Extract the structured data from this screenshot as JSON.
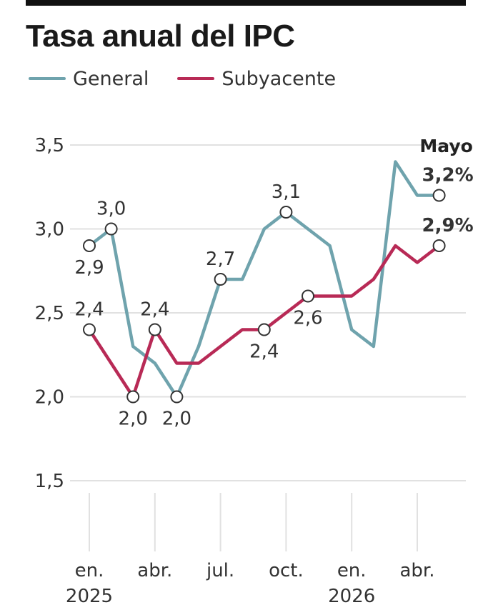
{
  "header": {
    "title": "Tasa anual del IPC"
  },
  "colors": {
    "general": "#6fa3ad",
    "subyacente": "#b82a56",
    "grid": "#e1e1e1",
    "text": "#333333"
  },
  "chart_data": {
    "type": "line",
    "title": "Tasa anual del IPC",
    "xlabel": "",
    "ylabel": "",
    "ylim": [
      1.5,
      3.5
    ],
    "yticks": [
      "3,5",
      "3,0",
      "2,5",
      "2,0",
      "1,5"
    ],
    "grid": true,
    "legend_position": "top-left",
    "x": [
      "2025-01",
      "2025-02",
      "2025-03",
      "2025-04",
      "2025-05",
      "2025-06",
      "2025-07",
      "2025-08",
      "2025-09",
      "2025-10",
      "2025-11",
      "2025-12",
      "2026-01",
      "2026-02",
      "2026-03",
      "2026-04",
      "2026-05"
    ],
    "xtick_labels": [
      {
        "x": "2025-01",
        "line1": "en.",
        "line2": "2025"
      },
      {
        "x": "2025-04",
        "line1": "abr.",
        "line2": ""
      },
      {
        "x": "2025-07",
        "line1": "jul.",
        "line2": ""
      },
      {
        "x": "2025-10",
        "line1": "oct.",
        "line2": ""
      },
      {
        "x": "2026-01",
        "line1": "en.",
        "line2": "2026"
      },
      {
        "x": "2026-04",
        "line1": "abr.",
        "line2": ""
      }
    ],
    "series": [
      {
        "name": "General",
        "values": [
          2.9,
          3.0,
          2.3,
          2.2,
          2.0,
          2.3,
          2.7,
          2.7,
          3.0,
          3.1,
          3.0,
          2.9,
          2.4,
          2.3,
          3.4,
          3.2,
          3.2
        ],
        "annotations": [
          {
            "x": "2025-01",
            "text": "2,9",
            "pos": "below"
          },
          {
            "x": "2025-02",
            "text": "3,0",
            "pos": "above"
          },
          {
            "x": "2025-05",
            "text": "2,0",
            "pos": "below"
          },
          {
            "x": "2025-07",
            "text": "2,7",
            "pos": "above"
          },
          {
            "x": "2025-10",
            "text": "3,1",
            "pos": "above"
          },
          {
            "x": "2026-05",
            "text": "3,2%",
            "pos": "above",
            "bold": true
          }
        ]
      },
      {
        "name": "Subyacente",
        "values": [
          2.4,
          2.2,
          2.0,
          2.4,
          2.2,
          2.2,
          2.3,
          2.4,
          2.4,
          2.5,
          2.6,
          2.6,
          2.6,
          2.7,
          2.9,
          2.8,
          2.9
        ],
        "annotations": [
          {
            "x": "2025-01",
            "text": "2,4",
            "pos": "above"
          },
          {
            "x": "2025-03",
            "text": "2,0",
            "pos": "below"
          },
          {
            "x": "2025-04",
            "text": "2,4",
            "pos": "above"
          },
          {
            "x": "2025-09",
            "text": "2,4",
            "pos": "below"
          },
          {
            "x": "2025-11",
            "text": "2,6",
            "pos": "below"
          },
          {
            "x": "2026-05",
            "text": "2,9%",
            "pos": "above",
            "bold": true
          }
        ]
      }
    ],
    "annotations": [
      {
        "x": "2026-05",
        "text": "Mayo"
      }
    ]
  }
}
